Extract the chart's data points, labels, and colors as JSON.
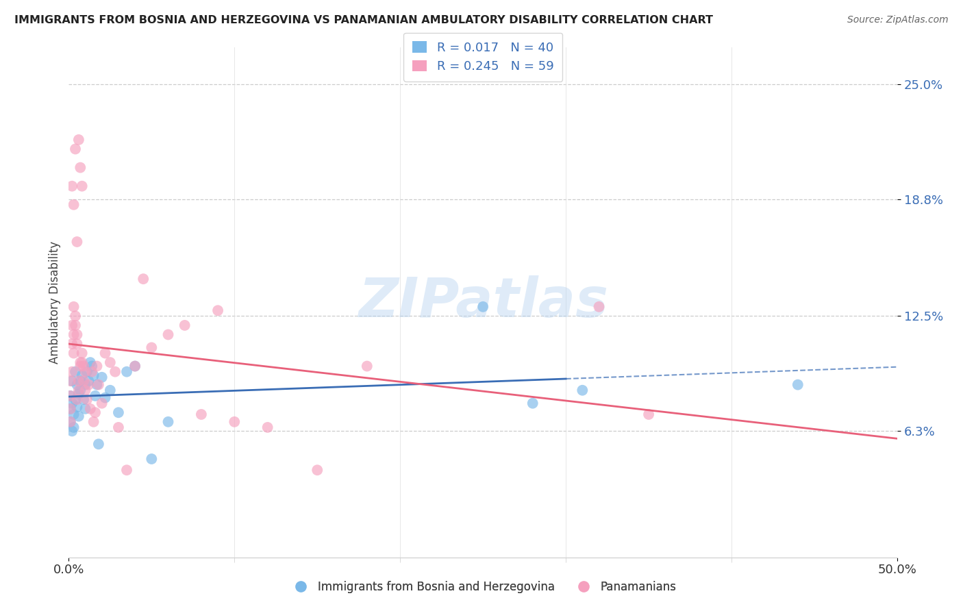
{
  "title": "IMMIGRANTS FROM BOSNIA AND HERZEGOVINA VS PANAMANIAN AMBULATORY DISABILITY CORRELATION CHART",
  "source": "Source: ZipAtlas.com",
  "ylabel": "Ambulatory Disability",
  "ytick_labels": [
    "6.3%",
    "12.5%",
    "18.8%",
    "25.0%"
  ],
  "ytick_values": [
    0.063,
    0.125,
    0.188,
    0.25
  ],
  "xlim": [
    0.0,
    0.5
  ],
  "ylim": [
    -0.005,
    0.27
  ],
  "blue_R": "0.017",
  "blue_N": "40",
  "pink_R": "0.245",
  "pink_N": "59",
  "legend_label_blue": "Immigrants from Bosnia and Herzegovina",
  "legend_label_pink": "Panamanians",
  "blue_color": "#7ab8e8",
  "pink_color": "#f5a0be",
  "blue_line_color": "#3a6db5",
  "pink_line_color": "#e8607a",
  "watermark": "ZIPatlas",
  "blue_x": [
    0.001,
    0.001,
    0.001,
    0.002,
    0.002,
    0.002,
    0.003,
    0.003,
    0.004,
    0.004,
    0.005,
    0.005,
    0.006,
    0.006,
    0.007,
    0.007,
    0.008,
    0.009,
    0.01,
    0.01,
    0.011,
    0.012,
    0.013,
    0.014,
    0.015,
    0.016,
    0.017,
    0.018,
    0.02,
    0.022,
    0.025,
    0.03,
    0.035,
    0.04,
    0.05,
    0.06,
    0.25,
    0.28,
    0.31,
    0.44
  ],
  "blue_y": [
    0.082,
    0.075,
    0.068,
    0.09,
    0.063,
    0.078,
    0.072,
    0.065,
    0.08,
    0.095,
    0.088,
    0.076,
    0.083,
    0.071,
    0.09,
    0.085,
    0.093,
    0.08,
    0.075,
    0.088,
    0.095,
    0.09,
    0.1,
    0.098,
    0.093,
    0.082,
    0.088,
    0.056,
    0.092,
    0.081,
    0.085,
    0.073,
    0.095,
    0.098,
    0.048,
    0.068,
    0.13,
    0.078,
    0.085,
    0.088
  ],
  "pink_x": [
    0.001,
    0.001,
    0.001,
    0.001,
    0.002,
    0.002,
    0.002,
    0.003,
    0.003,
    0.003,
    0.004,
    0.004,
    0.005,
    0.005,
    0.005,
    0.006,
    0.006,
    0.007,
    0.007,
    0.008,
    0.008,
    0.009,
    0.009,
    0.01,
    0.01,
    0.011,
    0.012,
    0.013,
    0.014,
    0.015,
    0.016,
    0.017,
    0.018,
    0.02,
    0.022,
    0.025,
    0.028,
    0.03,
    0.035,
    0.04,
    0.045,
    0.05,
    0.06,
    0.07,
    0.08,
    0.09,
    0.1,
    0.12,
    0.15,
    0.18,
    0.002,
    0.003,
    0.004,
    0.005,
    0.006,
    0.007,
    0.008,
    0.32,
    0.35
  ],
  "pink_y": [
    0.082,
    0.075,
    0.068,
    0.09,
    0.12,
    0.11,
    0.095,
    0.105,
    0.115,
    0.13,
    0.125,
    0.12,
    0.115,
    0.11,
    0.08,
    0.085,
    0.09,
    0.1,
    0.098,
    0.1,
    0.105,
    0.098,
    0.09,
    0.095,
    0.085,
    0.08,
    0.088,
    0.075,
    0.095,
    0.068,
    0.073,
    0.098,
    0.088,
    0.078,
    0.105,
    0.1,
    0.095,
    0.065,
    0.042,
    0.098,
    0.145,
    0.108,
    0.115,
    0.12,
    0.072,
    0.128,
    0.068,
    0.065,
    0.042,
    0.098,
    0.195,
    0.185,
    0.215,
    0.165,
    0.22,
    0.205,
    0.195,
    0.13,
    0.072
  ]
}
